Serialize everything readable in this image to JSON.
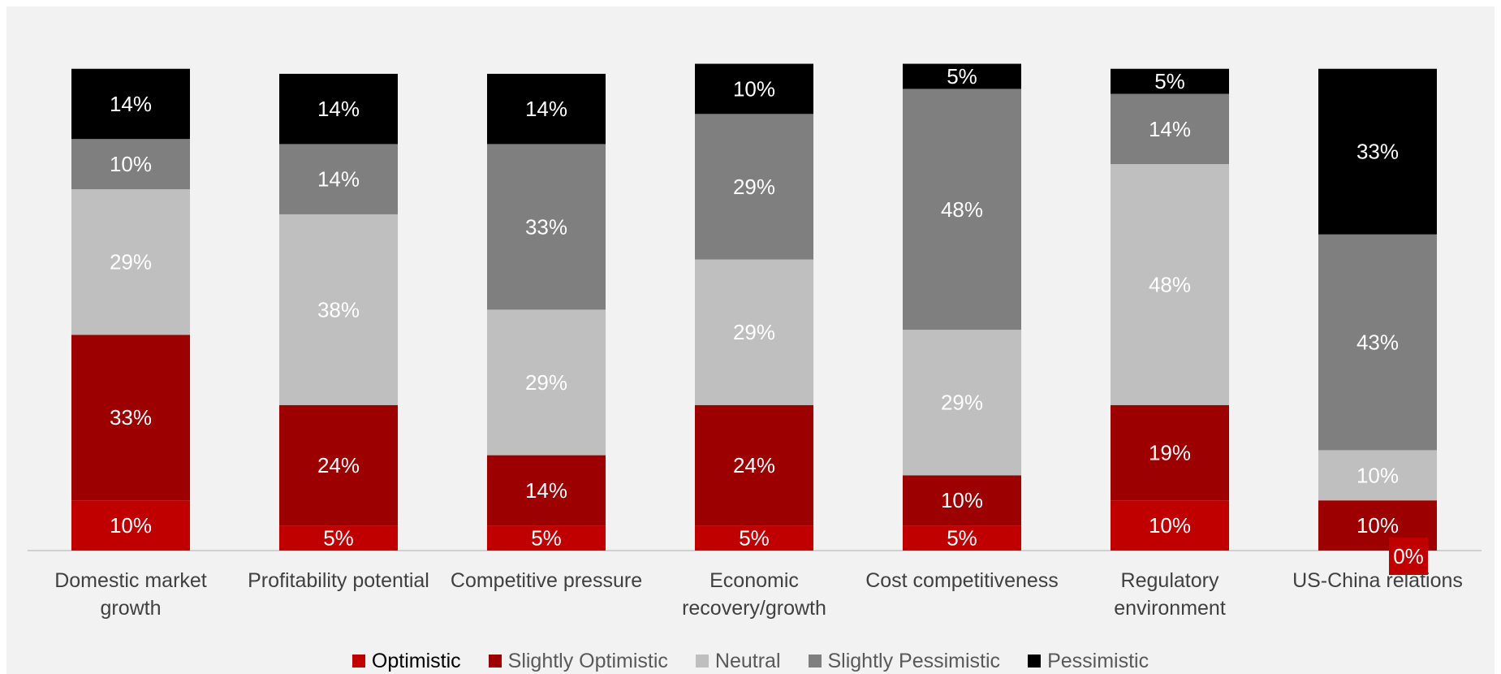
{
  "chart_data": {
    "type": "bar",
    "stacked": true,
    "categories": [
      "Domestic market growth",
      "Profitability potential",
      "Competitive pressure",
      "Economic recovery/growth",
      "Cost competitiveness",
      "Regulatory environment",
      "US-China relations"
    ],
    "category_lines": [
      [
        "Domestic market",
        "growth"
      ],
      [
        "Profitability potential"
      ],
      [
        "Competitive pressure"
      ],
      [
        "Economic",
        "recovery/growth"
      ],
      [
        "Cost competitiveness"
      ],
      [
        "Regulatory",
        "environment"
      ],
      [
        "US-China relations"
      ]
    ],
    "series": [
      {
        "name": "Optimistic",
        "color": "#c00000",
        "label_color": "#ffffff",
        "values": [
          10,
          5,
          5,
          5,
          5,
          10,
          0
        ],
        "labels": [
          "10%",
          "5%",
          "5%",
          "5%",
          "5%",
          "10%",
          "0%"
        ]
      },
      {
        "name": "Slightly Optimistic",
        "color": "#9c0000",
        "label_color": "#ffffff",
        "values": [
          33,
          24,
          14,
          24,
          10,
          19,
          10
        ],
        "labels": [
          "33%",
          "24%",
          "14%",
          "24%",
          "10%",
          "19%",
          "10%"
        ]
      },
      {
        "name": "Neutral",
        "color": "#bfbfbf",
        "label_color": "#ffffff",
        "values": [
          29,
          38,
          29,
          29,
          29,
          48,
          10
        ],
        "labels": [
          "29%",
          "38%",
          "29%",
          "29%",
          "29%",
          "48%",
          "10%"
        ]
      },
      {
        "name": "Slightly Pessimistic",
        "color": "#7f7f7f",
        "label_color": "#ffffff",
        "values": [
          10,
          14,
          33,
          29,
          48,
          14,
          43
        ],
        "labels": [
          "10%",
          "14%",
          "33%",
          "29%",
          "48%",
          "14%",
          "43%"
        ]
      },
      {
        "name": "Pessimistic",
        "color": "#000000",
        "label_color": "#ffffff",
        "values": [
          14,
          14,
          14,
          10,
          5,
          5,
          33
        ],
        "labels": [
          "14%",
          "14%",
          "14%",
          "10%",
          "5%",
          "5%",
          "33%"
        ]
      }
    ],
    "title": "",
    "xlabel": "",
    "ylabel": "",
    "ylim": [
      0,
      100
    ],
    "grid": false,
    "legend_position": "bottom"
  }
}
